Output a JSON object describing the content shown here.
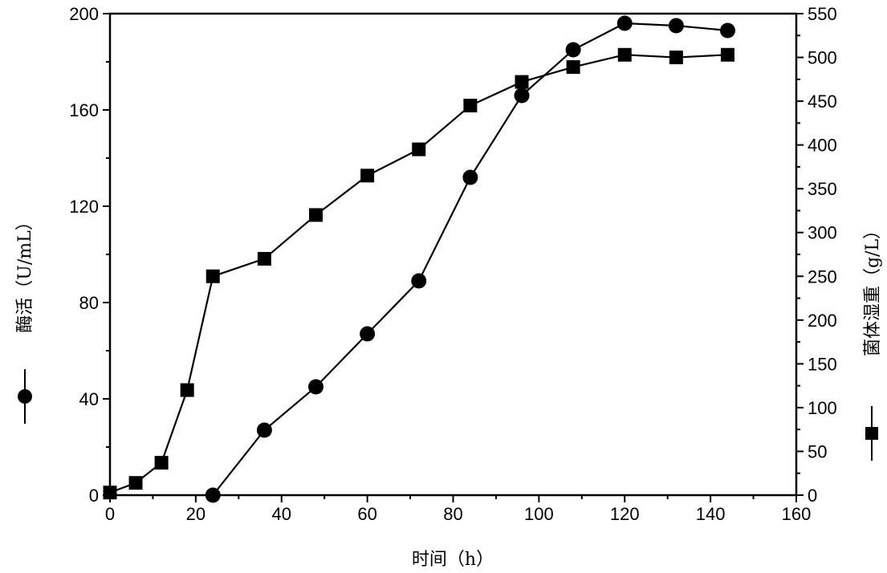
{
  "chart_data": {
    "type": "line",
    "xlabel": "时间（h）",
    "xlim": [
      0,
      160
    ],
    "x_ticks": [
      0,
      20,
      40,
      60,
      80,
      100,
      120,
      140,
      160
    ],
    "y_left": {
      "label": "酶活（U/mL）",
      "lim": [
        0,
        200
      ],
      "ticks": [
        0,
        40,
        80,
        120,
        160,
        200
      ]
    },
    "y_right": {
      "label": "菌体湿重（g/L）",
      "lim": [
        0,
        550
      ],
      "ticks": [
        0,
        50,
        100,
        150,
        200,
        250,
        300,
        350,
        400,
        450,
        500,
        550
      ]
    },
    "series": [
      {
        "name": "酶活",
        "axis": "left",
        "marker": "circle",
        "color": "#000000",
        "x": [
          24,
          36,
          48,
          60,
          72,
          84,
          96,
          108,
          120,
          132,
          144
        ],
        "y": [
          0,
          27,
          45,
          67,
          89,
          132,
          166,
          185,
          196,
          195,
          193
        ]
      },
      {
        "name": "菌体湿重",
        "axis": "right",
        "marker": "square",
        "color": "#000000",
        "x": [
          0,
          6,
          12,
          18,
          24,
          36,
          48,
          60,
          72,
          84,
          96,
          108,
          120,
          132,
          144
        ],
        "y": [
          3,
          14,
          37,
          120,
          250,
          270,
          320,
          365,
          395,
          445,
          472,
          489,
          503,
          500,
          503
        ]
      }
    ]
  }
}
